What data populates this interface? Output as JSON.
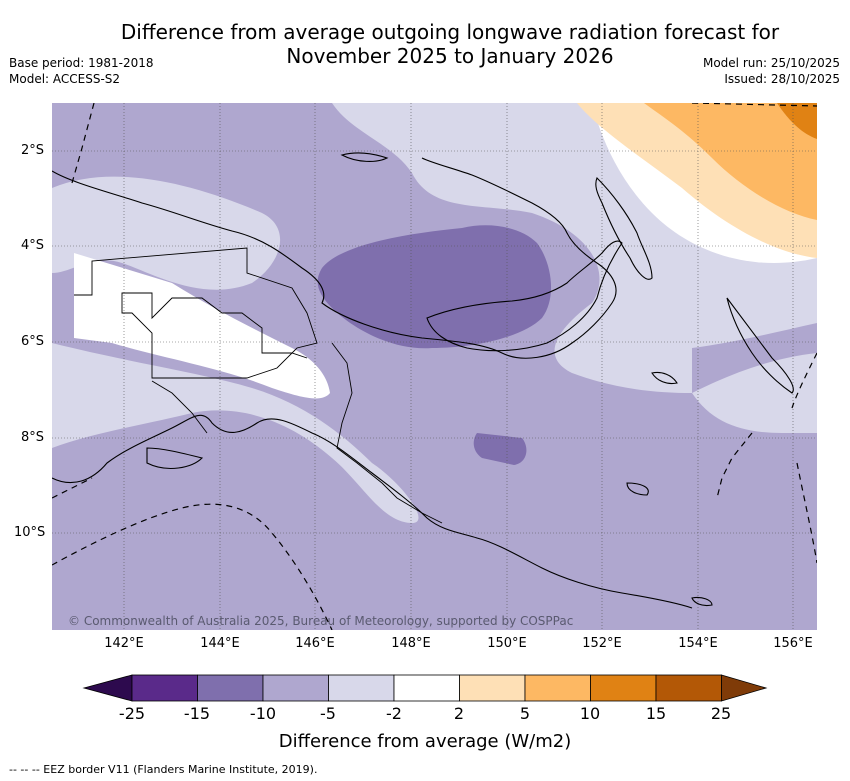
{
  "title": {
    "line1": "Difference from average outgoing longwave radiation forecast for",
    "line2": "November 2025 to January 2026"
  },
  "meta": {
    "base_period": "Base period: 1981-2018",
    "model": "Model: ACCESS-S2",
    "model_run": "Model run: 25/10/2025",
    "issued": "Issued: 28/10/2025"
  },
  "map": {
    "x_ticks": [
      "142°E",
      "144°E",
      "146°E",
      "148°E",
      "150°E",
      "152°E",
      "154°E",
      "156°E"
    ],
    "y_ticks": [
      "2°S",
      "4°S",
      "6°S",
      "8°S",
      "10°S"
    ],
    "copyright": "© Commonwealth of Australia 2025, Bureau of Meteorology, supported by COSPPac"
  },
  "colorbar": {
    "title": "Difference from average (W/m2)",
    "labels": [
      "-25",
      "-15",
      "-10",
      "-5",
      "-2",
      "2",
      "5",
      "10",
      "15",
      "25"
    ],
    "colors": {
      "below_min": "#2d0a4e",
      "c1": "#5a2a8a",
      "c2": "#7f6fad",
      "c3": "#afa7cf",
      "c4": "#d8d8ea",
      "c5": "#ffffff",
      "c6": "#fee0b6",
      "c7": "#fdb863",
      "c8": "#e08214",
      "c9": "#b35806",
      "above_max": "#7f3b08"
    }
  },
  "footnote": "--  --  -- EEZ border V11 (Flanders Marine Institute, 2019)."
}
